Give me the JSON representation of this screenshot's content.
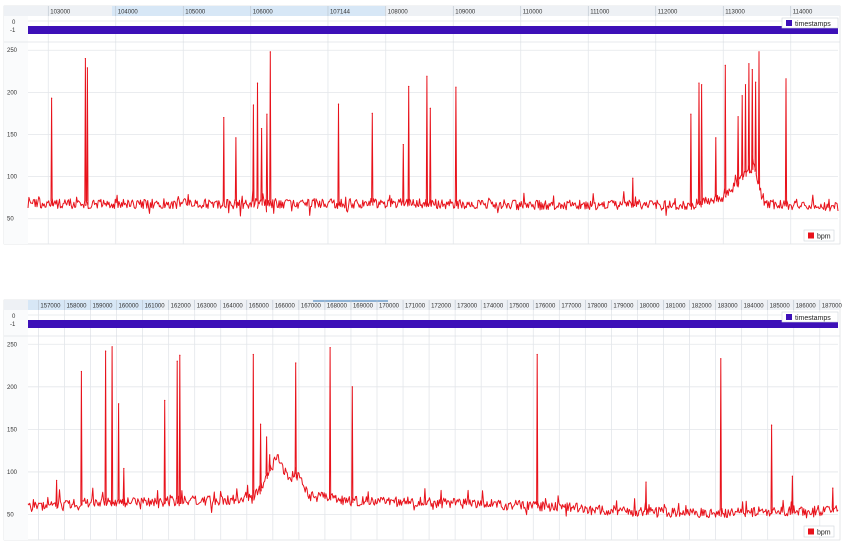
{
  "colors": {
    "timestamps": "#3d10b8",
    "bpm": "#e8121b",
    "axis_bg": "#eef1f5",
    "highlight_bg": "#d7e7f6",
    "grid": "#e3e6ea",
    "plot_bg": "#ffffff"
  },
  "chart_data": [
    {
      "type": "line",
      "x_ticks": [
        "103000",
        "104000",
        "105000",
        "106000",
        "107144",
        "108000",
        "109000",
        "110000",
        "111000",
        "112000",
        "113000",
        "114000"
      ],
      "x_tick_values": [
        103000,
        104000,
        105000,
        106000,
        107144,
        108000,
        109000,
        110000,
        111000,
        112000,
        113000,
        114000
      ],
      "xlim": [
        102700,
        114700
      ],
      "timestamps_ylim": [
        -1,
        0
      ],
      "timestamps_y_ticks": [
        "0",
        "-1"
      ],
      "y_ticks": [
        "250",
        "200",
        "150",
        "100",
        "50"
      ],
      "y_tick_values": [
        250,
        200,
        150,
        100,
        50
      ],
      "ylim": [
        20,
        255
      ],
      "legend_timestamps": "timestamps",
      "legend_bpm": "bpm",
      "series": [
        {
          "name": "bpm",
          "baseline": 68,
          "segments": [
            {
              "x": [
                102700,
                108500,
                110500,
                112500,
                113000,
                113200,
                113300,
                113450,
                113600,
                114700
              ],
              "y": [
                68,
                68,
                66,
                66,
                75,
                92,
                100,
                112,
                68,
                64
              ]
            }
          ],
          "spikes": [
            {
              "x": 103050,
              "y": 193
            },
            {
              "x": 103550,
              "y": 240
            },
            {
              "x": 103580,
              "y": 229
            },
            {
              "x": 105600,
              "y": 170
            },
            {
              "x": 105780,
              "y": 146
            },
            {
              "x": 106040,
              "y": 185
            },
            {
              "x": 106100,
              "y": 211
            },
            {
              "x": 106160,
              "y": 157
            },
            {
              "x": 106240,
              "y": 174
            },
            {
              "x": 106290,
              "y": 248
            },
            {
              "x": 107300,
              "y": 186
            },
            {
              "x": 107800,
              "y": 175
            },
            {
              "x": 108260,
              "y": 138
            },
            {
              "x": 108340,
              "y": 207
            },
            {
              "x": 108610,
              "y": 219
            },
            {
              "x": 108660,
              "y": 181
            },
            {
              "x": 109040,
              "y": 206
            },
            {
              "x": 111660,
              "y": 98
            },
            {
              "x": 112520,
              "y": 174
            },
            {
              "x": 112640,
              "y": 211
            },
            {
              "x": 112680,
              "y": 209
            },
            {
              "x": 112890,
              "y": 146
            },
            {
              "x": 113030,
              "y": 232
            },
            {
              "x": 113220,
              "y": 171
            },
            {
              "x": 113280,
              "y": 196
            },
            {
              "x": 113330,
              "y": 209
            },
            {
              "x": 113380,
              "y": 234
            },
            {
              "x": 113430,
              "y": 227
            },
            {
              "x": 113480,
              "y": 212
            },
            {
              "x": 113530,
              "y": 248
            },
            {
              "x": 113930,
              "y": 216
            }
          ]
        }
      ]
    },
    {
      "type": "line",
      "x_ticks": [
        "157000",
        "158000",
        "159000",
        "160000",
        "161000",
        "162000",
        "163000",
        "164000",
        "165000",
        "166000",
        "167000",
        "168000",
        "169000",
        "170000",
        "171000",
        "172000",
        "173000",
        "174000",
        "175000",
        "176000",
        "177000",
        "178000",
        "179000",
        "180000",
        "181000",
        "182000",
        "183000",
        "184000",
        "185000",
        "186000",
        "187000"
      ],
      "x_tick_values": [
        157000,
        158000,
        159000,
        160000,
        161000,
        162000,
        163000,
        164000,
        165000,
        166000,
        167000,
        168000,
        169000,
        170000,
        171000,
        172000,
        173000,
        174000,
        175000,
        176000,
        177000,
        178000,
        179000,
        180000,
        181000,
        182000,
        183000,
        184000,
        185000,
        186000,
        187000
      ],
      "xlim": [
        156600,
        187700
      ],
      "timestamps_ylim": [
        -1,
        0
      ],
      "timestamps_y_ticks": [
        "0",
        "-1"
      ],
      "y_ticks": [
        "250",
        "200",
        "150",
        "100",
        "50"
      ],
      "y_tick_values": [
        250,
        200,
        150,
        100,
        50
      ],
      "ylim": [
        20,
        255
      ],
      "legend_timestamps": "timestamps",
      "legend_bpm": "bpm",
      "series": [
        {
          "name": "bpm",
          "baseline": 62,
          "segments": [
            {
              "x": [
                156600,
                159000,
                163000,
                165200,
                165600,
                165900,
                166200,
                166600,
                167000,
                167400,
                169000,
                172000,
                176000,
                178500,
                180000,
                183000,
                185500,
                187700
              ],
              "y": [
                58,
                64,
                66,
                68,
                82,
                105,
                118,
                92,
                96,
                72,
                66,
                64,
                60,
                56,
                53,
                52,
                54,
                55
              ]
            }
          ],
          "spikes": [
            {
              "x": 157700,
              "y": 90
            },
            {
              "x": 158650,
              "y": 218
            },
            {
              "x": 159580,
              "y": 242
            },
            {
              "x": 159830,
              "y": 247
            },
            {
              "x": 160080,
              "y": 180
            },
            {
              "x": 160280,
              "y": 104
            },
            {
              "x": 161850,
              "y": 184
            },
            {
              "x": 162330,
              "y": 230
            },
            {
              "x": 162430,
              "y": 237
            },
            {
              "x": 165250,
              "y": 238
            },
            {
              "x": 165530,
              "y": 156
            },
            {
              "x": 165760,
              "y": 141
            },
            {
              "x": 165880,
              "y": 120
            },
            {
              "x": 166880,
              "y": 228
            },
            {
              "x": 168200,
              "y": 246
            },
            {
              "x": 169050,
              "y": 200
            },
            {
              "x": 176150,
              "y": 238
            },
            {
              "x": 180330,
              "y": 88
            },
            {
              "x": 183200,
              "y": 233
            },
            {
              "x": 185150,
              "y": 155
            },
            {
              "x": 185950,
              "y": 95
            },
            {
              "x": 187500,
              "y": 81
            }
          ]
        }
      ]
    }
  ]
}
